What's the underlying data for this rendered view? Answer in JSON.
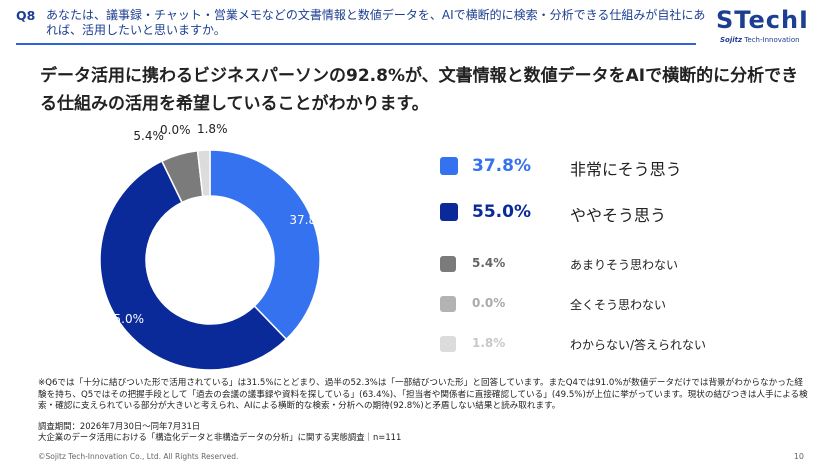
{
  "header": {
    "q_num": "Q8",
    "q_text": "あなたは、議事録・チャット・営業メモなどの文書情報と数値データを、AIで横断的に検索・分析できる仕組みが自社にあれば、活用したいと思いますか。"
  },
  "logo": {
    "main": "STechI",
    "sub_brand": "Sojitz",
    "sub_text": "Tech-Innovation"
  },
  "headline": "データ活用に携わるビジネスパーソンの92.8%が、文書情報と数値データをAIで横断的に分析できる仕組みの活用を希望していることがわかります。",
  "chart_data": {
    "type": "pie",
    "donut": true,
    "categories": [
      "非常にそう思う",
      "ややそう思う",
      "あまりそう思わない",
      "全くそう思わない",
      "わからない/答えられない"
    ],
    "values": [
      37.8,
      55.0,
      5.4,
      0.0,
      1.8
    ],
    "value_labels": [
      "37.8%",
      "55.0%",
      "5.4%",
      "0.0%",
      "1.8%"
    ],
    "colors": [
      "#3572ef",
      "#0a2a9a",
      "#7b7b7b",
      "#b3b3b3",
      "#dcdcdc"
    ],
    "legend_placement": "right"
  },
  "note": "※Q6では「十分に結びついた形で活用されている」は31.5%にとどまり、過半の52.3%は「一部結びついた形」と回答しています。またQ4では91.0%が数値データだけでは背景がわからなかった経験を持ち、Q5ではその把握手段として「過去の会議の議事録や資料を探している」(63.4%)、「担当者や関係者に直接確認している」(49.5%)が上位に挙がっています。現状の結びつきは人手による検索・確認に支えられている部分が大きいと考えられ、AIによる横断的な検索・分析への期待(92.8%)と矛盾しない結果と読み取れます。",
  "survey": {
    "period": "調査期間：2026年7月30日～同年7月31日",
    "title": "大企業のデータ活用における「構造化データと非構造データの分析」に関する実態調査｜n=111"
  },
  "footer": {
    "copyright": "©Sojitz Tech-Innovation Co., Ltd. All Rights Reserved.",
    "page": "10"
  }
}
